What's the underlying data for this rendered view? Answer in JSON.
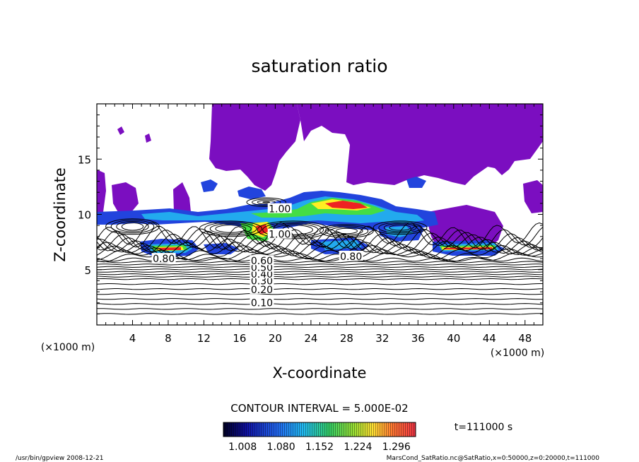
{
  "chart_data": {
    "type": "contour",
    "title": "saturation ratio",
    "xlabel": "X-coordinate",
    "ylabel": "Z-coordinate",
    "x_unit": "(×1000 m)",
    "y_unit": "(×1000 m)",
    "xlim": [
      0,
      50
    ],
    "ylim": [
      0,
      20
    ],
    "x_ticks": [
      4,
      8,
      12,
      16,
      20,
      24,
      28,
      32,
      36,
      40,
      44,
      48
    ],
    "y_ticks": [
      5,
      10,
      15
    ],
    "contour_interval_label": "CONTOUR INTERVAL = 5.000E-02",
    "time_label": "t=111000 s",
    "colorbar_ticks": [
      "1.008",
      "1.080",
      "1.152",
      "1.224",
      "1.296"
    ],
    "colorbar_range": [
      0.972,
      1.332
    ],
    "contour_labels": [
      {
        "x": 18.5,
        "y": 2.0,
        "text": "0.10"
      },
      {
        "x": 18.5,
        "y": 3.2,
        "text": "0.20"
      },
      {
        "x": 18.5,
        "y": 4.0,
        "text": "0.30"
      },
      {
        "x": 18.5,
        "y": 4.6,
        "text": "0.40"
      },
      {
        "x": 18.5,
        "y": 5.2,
        "text": "0.50"
      },
      {
        "x": 18.5,
        "y": 5.8,
        "text": "0.60"
      },
      {
        "x": 7.5,
        "y": 6.0,
        "text": "0.80"
      },
      {
        "x": 28.5,
        "y": 6.2,
        "text": "0.80"
      },
      {
        "x": 20.5,
        "y": 10.5,
        "text": "1.00"
      },
      {
        "x": 20.5,
        "y": 8.2,
        "text": "1.00"
      }
    ],
    "footer_left": "/usr/bin/gpview  2008-12-21",
    "footer_right": "MarsCond_SatRatio.nc@SatRatio,x=0:50000,z=0:20000,t=111000"
  },
  "colors": {
    "violet": "#7b0ec0",
    "blue": "#2244dd",
    "cyan": "#22aaee",
    "green": "#44dd44",
    "yellow": "#ffee22",
    "orange": "#ff8833",
    "red": "#ee2222",
    "axis": "#000000"
  }
}
